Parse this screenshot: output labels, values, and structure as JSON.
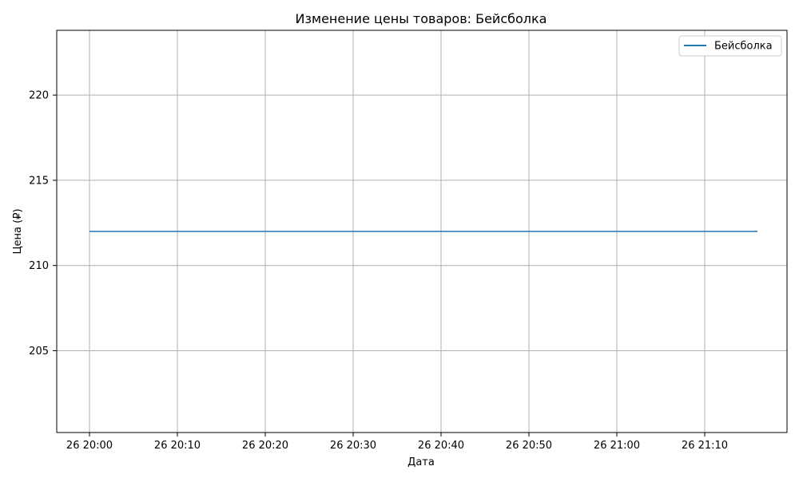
{
  "chart_data": {
    "type": "line",
    "title": "Изменение цены товаров: Бейсболка",
    "xlabel": "Дата",
    "ylabel": "Цена (₽)",
    "x": [
      "26 20:00",
      "26 21:16"
    ],
    "x_ticks": [
      "26 20:00",
      "26 20:10",
      "26 20:20",
      "26 20:30",
      "26 20:40",
      "26 20:50",
      "26 21:00",
      "26 21:10"
    ],
    "y_ticks": [
      "205",
      "210",
      "215",
      "220"
    ],
    "ylim": [
      200.2,
      223.8
    ],
    "series": [
      {
        "name": "Бейсболка",
        "color": "#1f77b4",
        "points": [
          {
            "x": "26 20:00",
            "y": 212
          },
          {
            "x": "26 21:16",
            "y": 212
          }
        ]
      }
    ],
    "grid": true,
    "legend_position": "top-right"
  }
}
